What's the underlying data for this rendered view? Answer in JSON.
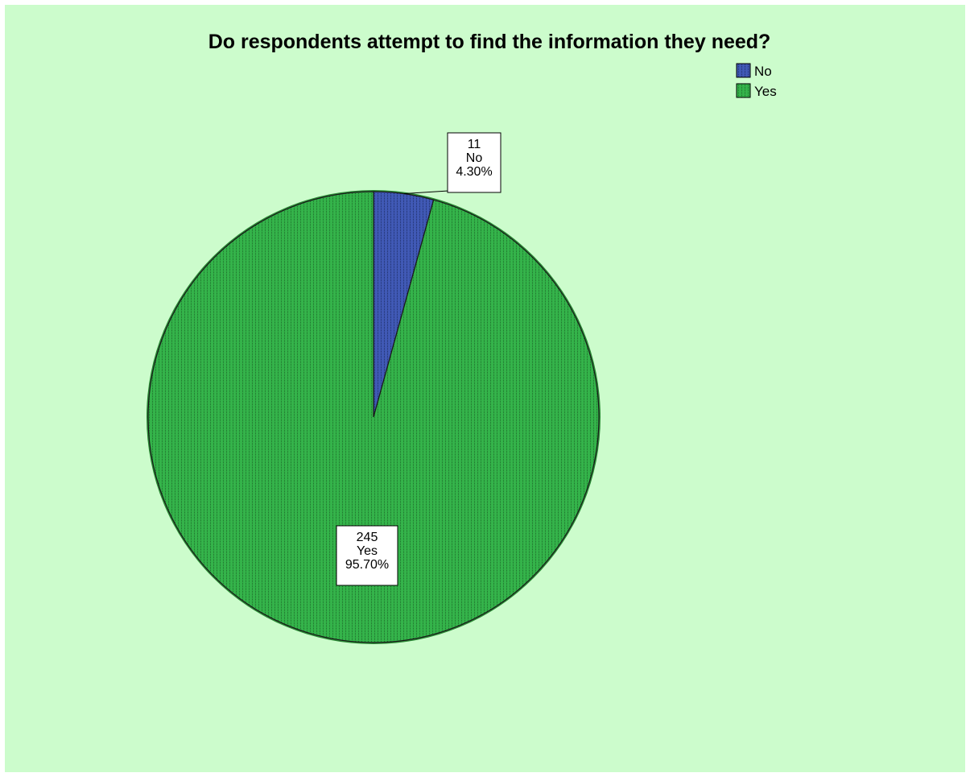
{
  "colors": {
    "background": "#ccfccc",
    "border": "#e8e8e8",
    "no": "#4059b5",
    "yes": "#34b34a",
    "yes_edge": "#2a8a35",
    "label_box": "#ffffff"
  },
  "chart_data": {
    "type": "pie",
    "title": "Do respondents attempt to find the information they need?",
    "legend_position": "top-right",
    "slices": [
      {
        "label": "No",
        "value": 11,
        "percent": "4.30%",
        "color": "#4059b5"
      },
      {
        "label": "Yes",
        "value": 245,
        "percent": "95.70%",
        "color": "#34b34a"
      }
    ],
    "legend": [
      {
        "label": "No",
        "color": "#4059b5"
      },
      {
        "label": "Yes",
        "color": "#34b34a"
      }
    ],
    "start_angle_deg": 0,
    "direction": "clockwise"
  }
}
